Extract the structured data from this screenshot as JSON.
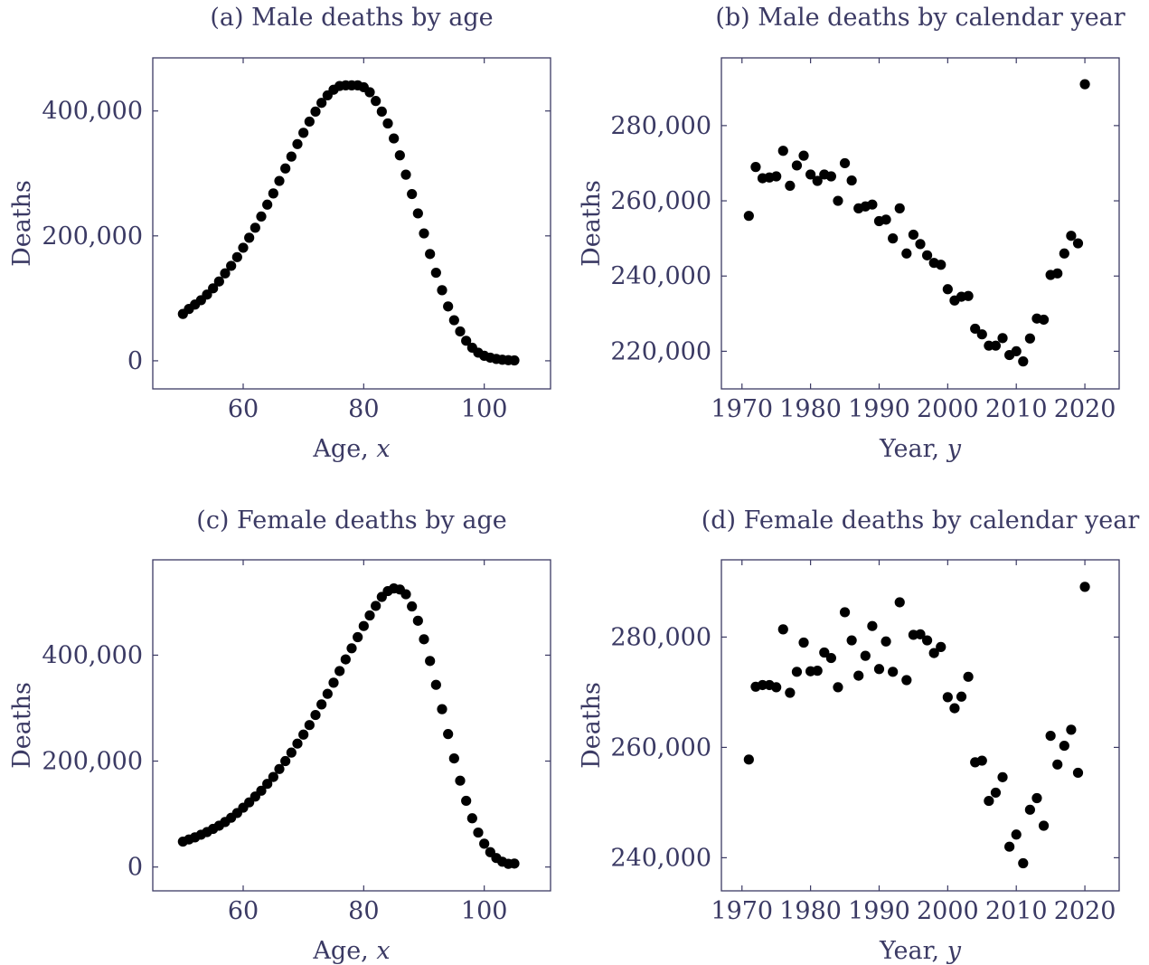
{
  "figure": {
    "colors": {
      "axis": "#3b3a64",
      "marker": "#000000"
    }
  },
  "chart_data": [
    {
      "type": "scatter",
      "title": "(a) Male deaths by age",
      "xlabel": "Age, ",
      "xlabel_var": "x",
      "ylabel": "Deaths",
      "xlim": [
        45,
        111
      ],
      "ylim": [
        -45000,
        485000
      ],
      "xticks": [
        60,
        80,
        100
      ],
      "xtick_labels": [
        "60",
        "80",
        "100"
      ],
      "yticks": [
        0,
        200000,
        400000
      ],
      "ytick_labels": [
        "0",
        "200,000",
        "400,000"
      ],
      "grid": false,
      "series": [
        {
          "x": [
            50,
            51,
            52,
            53,
            54,
            55,
            56,
            57,
            58,
            59,
            60,
            61,
            62,
            63,
            64,
            65,
            66,
            67,
            68,
            69,
            70,
            71,
            72,
            73,
            74,
            75,
            76,
            77,
            78,
            79,
            80,
            81,
            82,
            83,
            84,
            85,
            86,
            87,
            88,
            89,
            90,
            91,
            92,
            93,
            94,
            95,
            96,
            97,
            98,
            99,
            100,
            101,
            102,
            103,
            104,
            105
          ],
          "y": [
            75000,
            83000,
            90000,
            97000,
            106000,
            116000,
            127000,
            140000,
            152000,
            166000,
            181000,
            197000,
            213000,
            231000,
            250000,
            268000,
            288000,
            308000,
            327000,
            347000,
            365000,
            383000,
            399000,
            413000,
            425000,
            434000,
            440000,
            441000,
            441000,
            441000,
            438000,
            430000,
            416000,
            399000,
            380000,
            356000,
            329000,
            298000,
            267000,
            236000,
            204000,
            171000,
            141000,
            113000,
            87000,
            65000,
            47000,
            32000,
            21000,
            13000,
            8000,
            5000,
            3000,
            1700,
            1000,
            600
          ]
        }
      ]
    },
    {
      "type": "scatter",
      "title": "(b) Male deaths by calendar year",
      "xlabel": "Year, ",
      "xlabel_var": "y",
      "ylabel": "Deaths",
      "xlim": [
        1967,
        2025
      ],
      "ylim": [
        210000,
        298000
      ],
      "xticks": [
        1970,
        1980,
        1990,
        2000,
        2010,
        2020
      ],
      "xtick_labels": [
        "1970",
        "1980",
        "1990",
        "2000",
        "2010",
        "2020"
      ],
      "yticks": [
        220000,
        240000,
        260000,
        280000
      ],
      "ytick_labels": [
        "220,000",
        "240,000",
        "260,000",
        "280,000"
      ],
      "grid": false,
      "series": [
        {
          "x": [
            1971,
            1972,
            1973,
            1974,
            1975,
            1976,
            1977,
            1978,
            1979,
            1980,
            1981,
            1982,
            1983,
            1984,
            1985,
            1986,
            1987,
            1988,
            1989,
            1990,
            1991,
            1992,
            1993,
            1994,
            1995,
            1996,
            1997,
            1998,
            1999,
            2000,
            2001,
            2002,
            2003,
            2004,
            2005,
            2006,
            2007,
            2008,
            2009,
            2010,
            2011,
            2012,
            2013,
            2014,
            2015,
            2016,
            2017,
            2018,
            2019,
            2020
          ],
          "y": [
            256000,
            269000,
            266000,
            266200,
            266500,
            273300,
            264000,
            269400,
            272000,
            267000,
            265300,
            267000,
            266500,
            260000,
            270000,
            265400,
            258000,
            258500,
            259000,
            254600,
            255000,
            250000,
            258000,
            246000,
            251000,
            248500,
            245500,
            243500,
            243000,
            236500,
            233500,
            234500,
            234700,
            226000,
            224500,
            221500,
            221500,
            223500,
            219000,
            220000,
            217300,
            223400,
            228700,
            228400,
            240300,
            240700,
            246000,
            250700,
            248700,
            291000
          ]
        }
      ]
    },
    {
      "type": "scatter",
      "title": "(c) Female deaths by age",
      "xlabel": "Age, ",
      "xlabel_var": "x",
      "ylabel": "Deaths",
      "xlim": [
        45,
        111
      ],
      "ylim": [
        -45000,
        580000
      ],
      "xticks": [
        60,
        80,
        100
      ],
      "xtick_labels": [
        "60",
        "80",
        "100"
      ],
      "yticks": [
        0,
        200000,
        400000
      ],
      "ytick_labels": [
        "0",
        "200,000",
        "400,000"
      ],
      "grid": false,
      "series": [
        {
          "x": [
            50,
            51,
            52,
            53,
            54,
            55,
            56,
            57,
            58,
            59,
            60,
            61,
            62,
            63,
            64,
            65,
            66,
            67,
            68,
            69,
            70,
            71,
            72,
            73,
            74,
            75,
            76,
            77,
            78,
            79,
            80,
            81,
            82,
            83,
            84,
            85,
            86,
            87,
            88,
            89,
            90,
            91,
            92,
            93,
            94,
            95,
            96,
            97,
            98,
            99,
            100,
            101,
            102,
            103,
            104,
            105
          ],
          "y": [
            48000,
            52000,
            56000,
            61000,
            66000,
            72000,
            78000,
            85000,
            93000,
            102000,
            112000,
            122000,
            133000,
            144000,
            157000,
            170000,
            185000,
            200000,
            216000,
            233000,
            250000,
            268000,
            287000,
            307000,
            327000,
            348000,
            370000,
            392000,
            413000,
            434000,
            455000,
            475000,
            493000,
            510000,
            521000,
            526000,
            524000,
            515000,
            492000,
            465000,
            430000,
            389000,
            344000,
            298000,
            251000,
            205000,
            163000,
            125000,
            92000,
            65000,
            44000,
            28000,
            17000,
            10000,
            6000,
            6500
          ]
        }
      ]
    },
    {
      "type": "scatter",
      "title": "(d) Female deaths by calendar year",
      "xlabel": "Year, ",
      "xlabel_var": "y",
      "ylabel": "Deaths",
      "xlim": [
        1967,
        2025
      ],
      "ylim": [
        234000,
        294000
      ],
      "xticks": [
        1970,
        1980,
        1990,
        2000,
        2010,
        2020
      ],
      "xtick_labels": [
        "1970",
        "1980",
        "1990",
        "2000",
        "2010",
        "2020"
      ],
      "yticks": [
        240000,
        260000,
        280000
      ],
      "ytick_labels": [
        "240,000",
        "260,000",
        "280,000"
      ],
      "grid": false,
      "series": [
        {
          "x": [
            1971,
            1972,
            1973,
            1974,
            1975,
            1976,
            1977,
            1978,
            1979,
            1980,
            1981,
            1982,
            1983,
            1984,
            1985,
            1986,
            1987,
            1988,
            1989,
            1990,
            1991,
            1992,
            1993,
            1994,
            1995,
            1996,
            1997,
            1998,
            1999,
            2000,
            2001,
            2002,
            2003,
            2004,
            2005,
            2006,
            2007,
            2008,
            2009,
            2010,
            2011,
            2012,
            2013,
            2014,
            2015,
            2016,
            2017,
            2018,
            2019,
            2020
          ],
          "y": [
            257800,
            271000,
            271300,
            271300,
            270900,
            281400,
            269900,
            273700,
            279000,
            273800,
            273900,
            277200,
            276200,
            270900,
            284500,
            279400,
            273000,
            276600,
            282000,
            274200,
            279200,
            273700,
            286300,
            272200,
            280400,
            280500,
            279400,
            277100,
            278200,
            269100,
            267100,
            269200,
            272800,
            257300,
            257600,
            250300,
            251800,
            254600,
            242000,
            244200,
            239000,
            248700,
            250800,
            245800,
            262100,
            256900,
            260300,
            263200,
            255400,
            289100
          ]
        }
      ]
    }
  ]
}
